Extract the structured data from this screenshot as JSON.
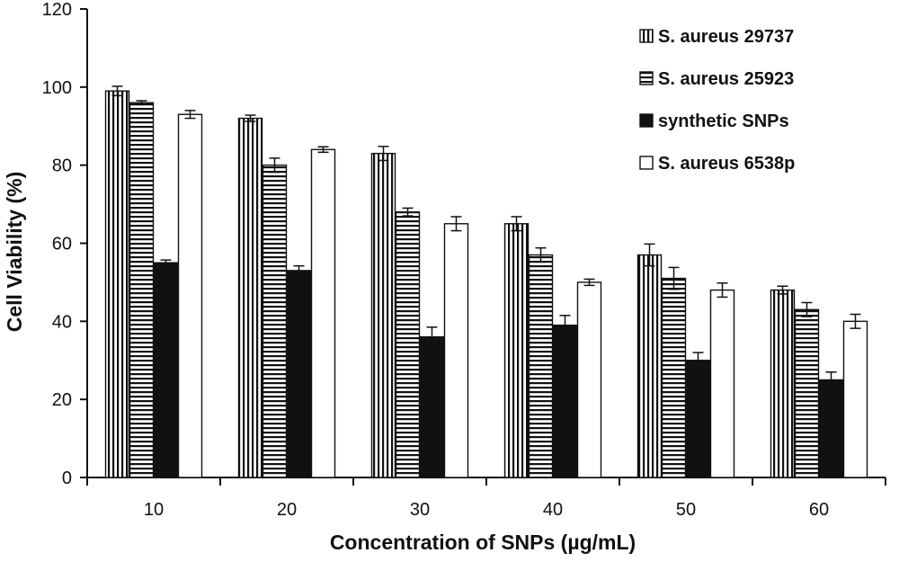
{
  "chart_data": {
    "type": "bar",
    "categories": [
      "10",
      "20",
      "30",
      "40",
      "50",
      "60"
    ],
    "series": [
      {
        "name": "S. aureus 29737",
        "pattern": "vertical-stripes",
        "values": [
          99,
          92,
          83,
          65,
          57,
          48
        ],
        "errors": [
          1.2,
          0.8,
          1.8,
          1.8,
          2.8,
          1.0
        ]
      },
      {
        "name": "S. aureus 25923",
        "pattern": "horizontal-stripes",
        "values": [
          96,
          80,
          68,
          57,
          51,
          43
        ],
        "errors": [
          0.5,
          1.8,
          1.0,
          1.8,
          2.8,
          1.8
        ]
      },
      {
        "name": "synthetic SNPs",
        "pattern": "solid-black",
        "values": [
          55,
          53,
          36,
          39,
          30,
          25
        ],
        "errors": [
          0.7,
          1.2,
          2.5,
          2.5,
          2.0,
          2.0
        ]
      },
      {
        "name": "S. aureus 6538p",
        "pattern": "white",
        "values": [
          93,
          84,
          65,
          50,
          48,
          40
        ],
        "errors": [
          1.0,
          0.7,
          1.8,
          0.8,
          1.8,
          1.8
        ]
      }
    ],
    "xlabel": "Concentration of  SNPs  (µg/mL)",
    "ylabel": "Cell Viability  (%)",
    "ylim": [
      0,
      120
    ],
    "yticks": [
      "0",
      "20",
      "40",
      "60",
      "80",
      "100",
      "120"
    ],
    "grid": false,
    "legend_position": "top-right"
  }
}
